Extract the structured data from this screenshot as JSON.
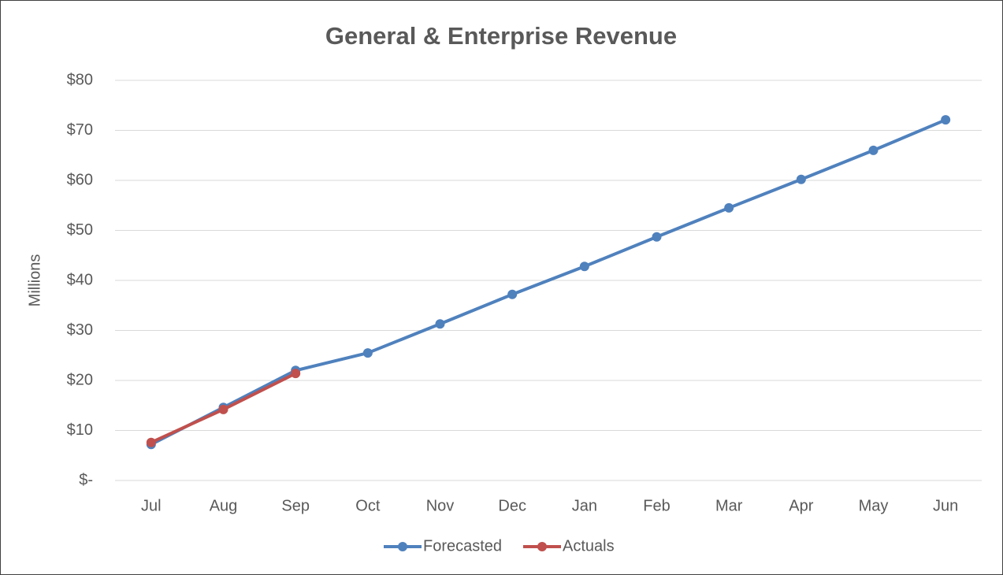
{
  "chart_data": {
    "type": "line",
    "title": "General & Enterprise Revenue",
    "y_label": "Millions",
    "categories": [
      "Jul",
      "Aug",
      "Sep",
      "Oct",
      "Nov",
      "Dec",
      "Jan",
      "Feb",
      "Mar",
      "Apr",
      "May",
      "Jun"
    ],
    "series": [
      {
        "name": "Forecasted",
        "color": "#4f81bd",
        "values": [
          7.2,
          14.6,
          22.0,
          25.5,
          31.3,
          37.2,
          42.8,
          48.7,
          54.5,
          60.2,
          66.0,
          72.1
        ]
      },
      {
        "name": "Actuals",
        "color": "#c0504d",
        "values": [
          7.6,
          14.2,
          21.4,
          null,
          null,
          null,
          null,
          null,
          null,
          null,
          null,
          null
        ]
      }
    ],
    "ylim": [
      0,
      80
    ],
    "yticks": [
      {
        "value": 0,
        "label": "$-"
      },
      {
        "value": 10,
        "label": "$10"
      },
      {
        "value": 20,
        "label": "$20"
      },
      {
        "value": 30,
        "label": "$30"
      },
      {
        "value": 40,
        "label": "$40"
      },
      {
        "value": 50,
        "label": "$50"
      },
      {
        "value": 60,
        "label": "$60"
      },
      {
        "value": 70,
        "label": "$70"
      },
      {
        "value": 80,
        "label": "$80"
      }
    ],
    "grid": true,
    "legend": "bottom"
  }
}
